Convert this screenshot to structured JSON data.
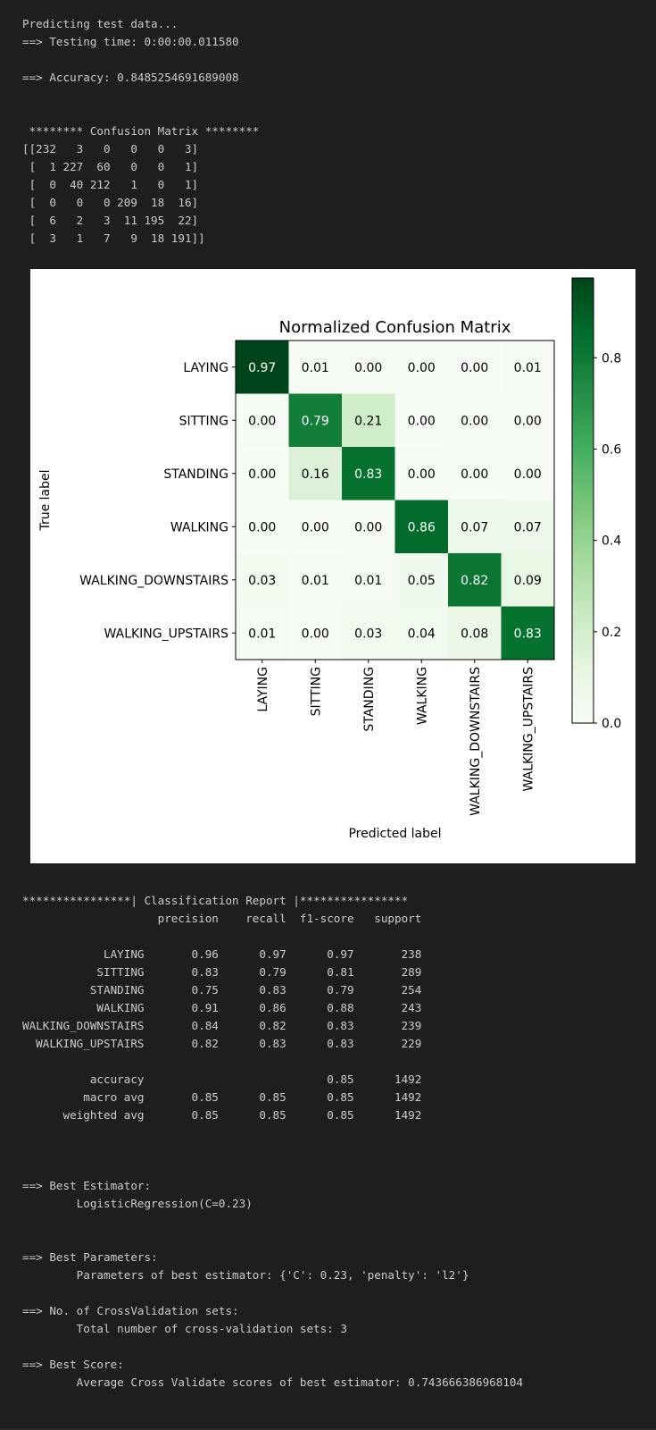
{
  "output": {
    "header_lines": [
      "Predicting test data...",
      "==> Testing time: 0:00:00.011580",
      "",
      "==> Accuracy: 0.8485254691689008",
      "",
      "",
      " ******** Confusion Matrix ********"
    ],
    "raw_matrix_lines": [
      "[[232   3   0   0   0   3]",
      " [  1 227  60   0   0   1]",
      " [  0  40 212   1   0   1]",
      " [  0   0   0 209  18  16]",
      " [  6   2   3  11 195  22]",
      " [  3   1   7   9  18 191]]"
    ],
    "report_lines": [
      "****************| Classification Report |****************",
      "                    precision    recall  f1-score   support",
      "",
      "            LAYING       0.96      0.97      0.97       238",
      "           SITTING       0.83      0.79      0.81       289",
      "          STANDING       0.75      0.83      0.79       254",
      "           WALKING       0.91      0.86      0.88       243",
      "WALKING_DOWNSTAIRS       0.84      0.82      0.83       239",
      "  WALKING_UPSTAIRS       0.82      0.83      0.83       229",
      "",
      "          accuracy                           0.85      1492",
      "         macro avg       0.85      0.85      0.85      1492",
      "      weighted avg       0.85      0.85      0.85      1492"
    ],
    "footer_lines": [
      "==> Best Estimator:",
      "        LogisticRegression(C=0.23)",
      "",
      "",
      "==> Best Parameters:",
      "        Parameters of best estimator: {'C': 0.23, 'penalty': 'l2'}",
      "",
      "==> No. of CrossValidation sets:",
      "        Total number of cross-validation sets: 3",
      "",
      "==> Best Score:",
      "        Average Cross Validate scores of best estimator: 0.743666386968104"
    ]
  },
  "colors": {
    "background": "#1e1e1e",
    "text": "#cccccc",
    "cmap_low": "#f7fcf5",
    "cmap_mid": "#74c476",
    "cmap_high": "#00441b"
  },
  "chart_data": {
    "type": "heatmap",
    "title": "Normalized Confusion Matrix",
    "xlabel": "Predicted label",
    "ylabel": "True label",
    "x_categories": [
      "LAYING",
      "SITTING",
      "STANDING",
      "WALKING",
      "WALKING_DOWNSTAIRS",
      "WALKING_UPSTAIRS"
    ],
    "y_categories": [
      "LAYING",
      "SITTING",
      "STANDING",
      "WALKING",
      "WALKING_DOWNSTAIRS",
      "WALKING_UPSTAIRS"
    ],
    "cell_labels": [
      [
        "0.97",
        "0.01",
        "0.00",
        "0.00",
        "0.00",
        "0.01"
      ],
      [
        "0.00",
        "0.79",
        "0.21",
        "0.00",
        "0.00",
        "0.00"
      ],
      [
        "0.00",
        "0.16",
        "0.83",
        "0.00",
        "0.00",
        "0.00"
      ],
      [
        "0.00",
        "0.00",
        "0.00",
        "0.86",
        "0.07",
        "0.07"
      ],
      [
        "0.03",
        "0.01",
        "0.01",
        "0.05",
        "0.82",
        "0.09"
      ],
      [
        "0.01",
        "0.00",
        "0.03",
        "0.04",
        "0.08",
        "0.83"
      ]
    ],
    "values": [
      [
        0.9748,
        0.0126,
        0.0,
        0.0,
        0.0,
        0.0126
      ],
      [
        0.0035,
        0.7855,
        0.2076,
        0.0,
        0.0,
        0.0035
      ],
      [
        0.0,
        0.1575,
        0.8346,
        0.0039,
        0.0,
        0.0039
      ],
      [
        0.0,
        0.0,
        0.0,
        0.8601,
        0.0741,
        0.0658
      ],
      [
        0.0251,
        0.0084,
        0.0126,
        0.046,
        0.8159,
        0.0921
      ],
      [
        0.0131,
        0.0044,
        0.0306,
        0.0393,
        0.0786,
        0.8341
      ]
    ],
    "colorbar": {
      "min": 0.0,
      "max": 0.9748,
      "ticks": [
        0.0,
        0.2,
        0.4,
        0.6,
        0.8
      ],
      "tick_labels": [
        "0.0",
        "0.2",
        "0.4",
        "0.6",
        "0.8"
      ]
    },
    "colormap": "Greens",
    "grid": false
  }
}
